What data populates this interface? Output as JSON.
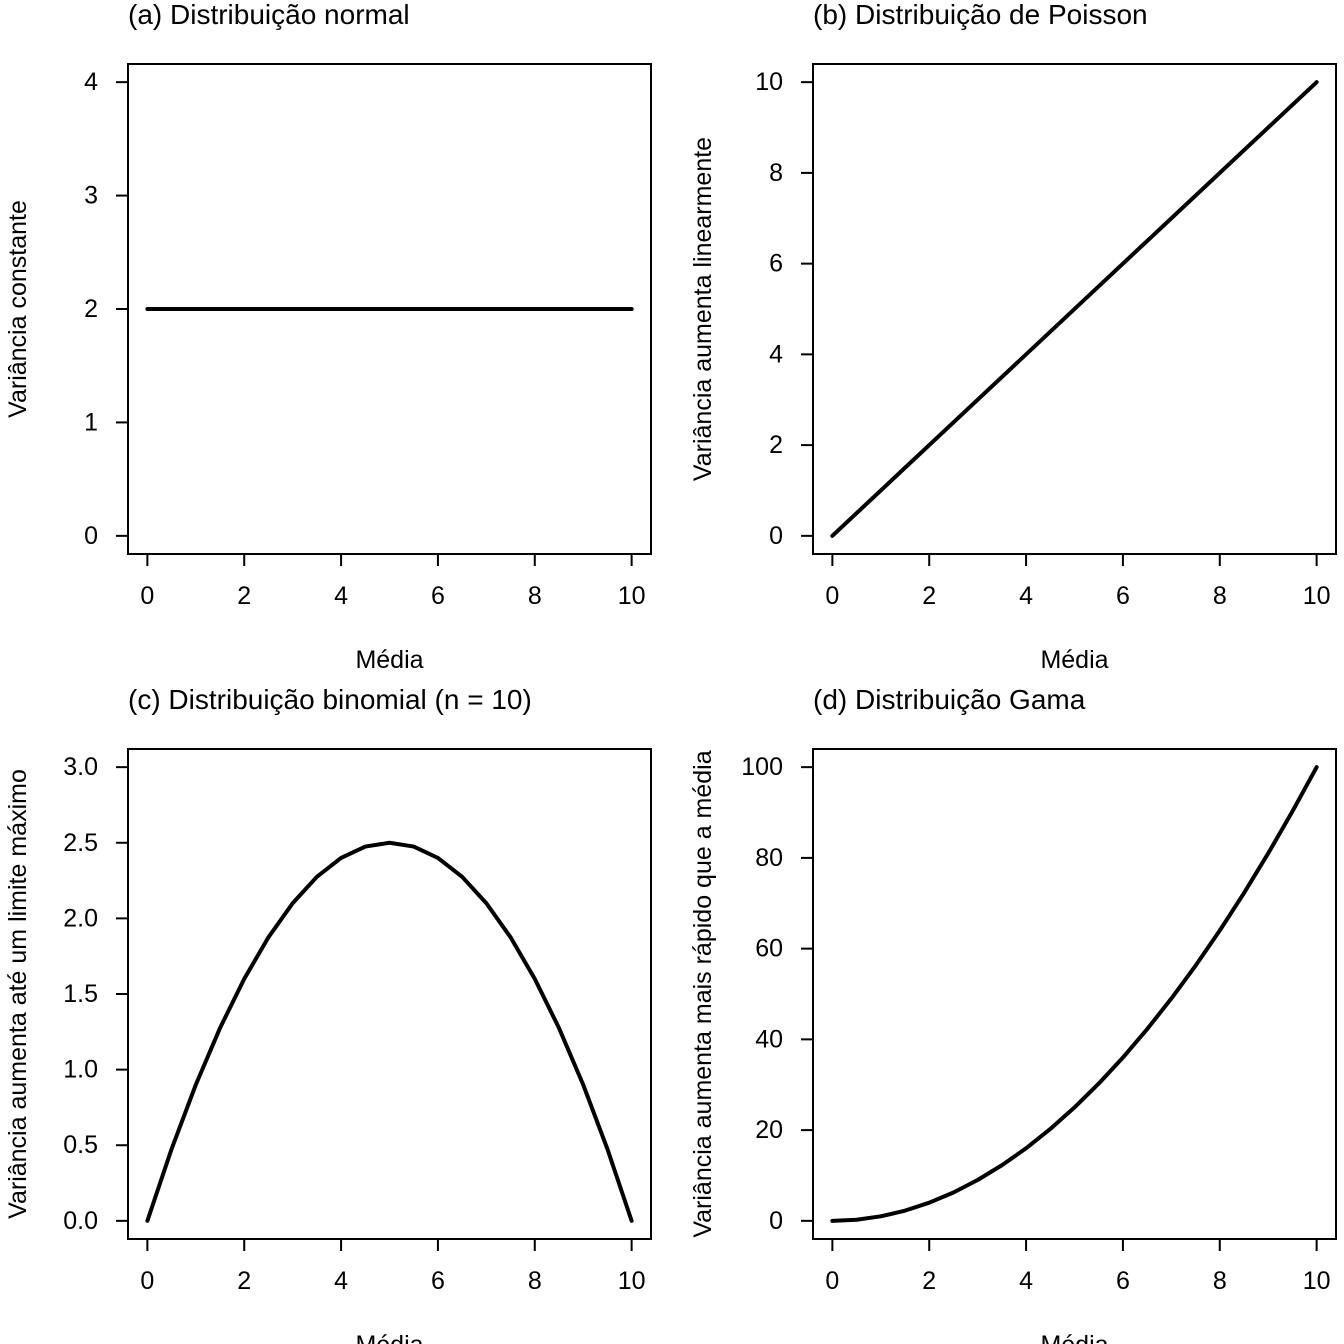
{
  "chart_data": [
    {
      "type": "line",
      "title": "(a) Distribuição normal",
      "xlabel": "Média",
      "ylabel": "Variância constante",
      "xlim": [
        -0.4,
        10.4
      ],
      "ylim": [
        -0.16,
        4.16
      ],
      "xticks": [
        0,
        2,
        4,
        6,
        8,
        10
      ],
      "xtick_labels": [
        "0",
        "2",
        "4",
        "6",
        "8",
        "10"
      ],
      "yticks": [
        0,
        1,
        2,
        3,
        4
      ],
      "ytick_labels": [
        "0",
        "1",
        "2",
        "3",
        "4"
      ],
      "grid": false,
      "series": [
        {
          "x": [
            0,
            10
          ],
          "y": [
            2,
            2
          ]
        }
      ]
    },
    {
      "type": "line",
      "title": "(b) Distribuição de Poisson",
      "xlabel": "Média",
      "ylabel": "Variância aumenta linearmente",
      "xlim": [
        -0.4,
        10.4
      ],
      "ylim": [
        -0.4,
        10.4
      ],
      "xticks": [
        0,
        2,
        4,
        6,
        8,
        10
      ],
      "xtick_labels": [
        "0",
        "2",
        "4",
        "6",
        "8",
        "10"
      ],
      "yticks": [
        0,
        2,
        4,
        6,
        8,
        10
      ],
      "ytick_labels": [
        "0",
        "2",
        "4",
        "6",
        "8",
        "10"
      ],
      "grid": false,
      "series": [
        {
          "x": [
            0,
            10
          ],
          "y": [
            0,
            10
          ]
        }
      ]
    },
    {
      "type": "line",
      "title": "(c) Distribuição binomial (n = 10)",
      "xlabel": "Média",
      "ylabel": "Variância aumenta até um limite máximo",
      "xlim": [
        -0.4,
        10.4
      ],
      "ylim": [
        -0.12,
        3.12
      ],
      "xticks": [
        0,
        2,
        4,
        6,
        8,
        10
      ],
      "xtick_labels": [
        "0",
        "2",
        "4",
        "6",
        "8",
        "10"
      ],
      "yticks": [
        0,
        0.5,
        1,
        1.5,
        2,
        2.5,
        3
      ],
      "ytick_labels": [
        "0.0",
        "0.5",
        "1.0",
        "1.5",
        "2.0",
        "2.5",
        "3.0"
      ],
      "grid": false,
      "series": [
        {
          "x": [
            0,
            0.5,
            1,
            1.5,
            2,
            2.5,
            3,
            3.5,
            4,
            4.5,
            5,
            5.5,
            6,
            6.5,
            7,
            7.5,
            8,
            8.5,
            9,
            9.5,
            10
          ],
          "y": [
            0,
            0.475,
            0.9,
            1.275,
            1.6,
            1.875,
            2.1,
            2.275,
            2.4,
            2.475,
            2.5,
            2.475,
            2.4,
            2.275,
            2.1,
            1.875,
            1.6,
            1.275,
            0.9,
            0.475,
            0
          ]
        }
      ]
    },
    {
      "type": "line",
      "title": "(d) Distribuição Gama",
      "xlabel": "Média",
      "ylabel": "Variância aumenta mais rápido que a média",
      "xlim": [
        -0.4,
        10.4
      ],
      "ylim": [
        -4,
        104
      ],
      "xticks": [
        0,
        2,
        4,
        6,
        8,
        10
      ],
      "xtick_labels": [
        "0",
        "2",
        "4",
        "6",
        "8",
        "10"
      ],
      "yticks": [
        0,
        20,
        40,
        60,
        80,
        100
      ],
      "ytick_labels": [
        "0",
        "20",
        "40",
        "60",
        "80",
        "100"
      ],
      "grid": false,
      "series": [
        {
          "x": [
            0,
            0.5,
            1,
            1.5,
            2,
            2.5,
            3,
            3.5,
            4,
            4.5,
            5,
            5.5,
            6,
            6.5,
            7,
            7.5,
            8,
            8.5,
            9,
            9.5,
            10
          ],
          "y": [
            0,
            0.25,
            1,
            2.25,
            4,
            6.25,
            9,
            12.25,
            16,
            20.25,
            25,
            30.25,
            36,
            42.25,
            49,
            56.25,
            64,
            72.25,
            81,
            90.25,
            100
          ]
        }
      ]
    }
  ]
}
